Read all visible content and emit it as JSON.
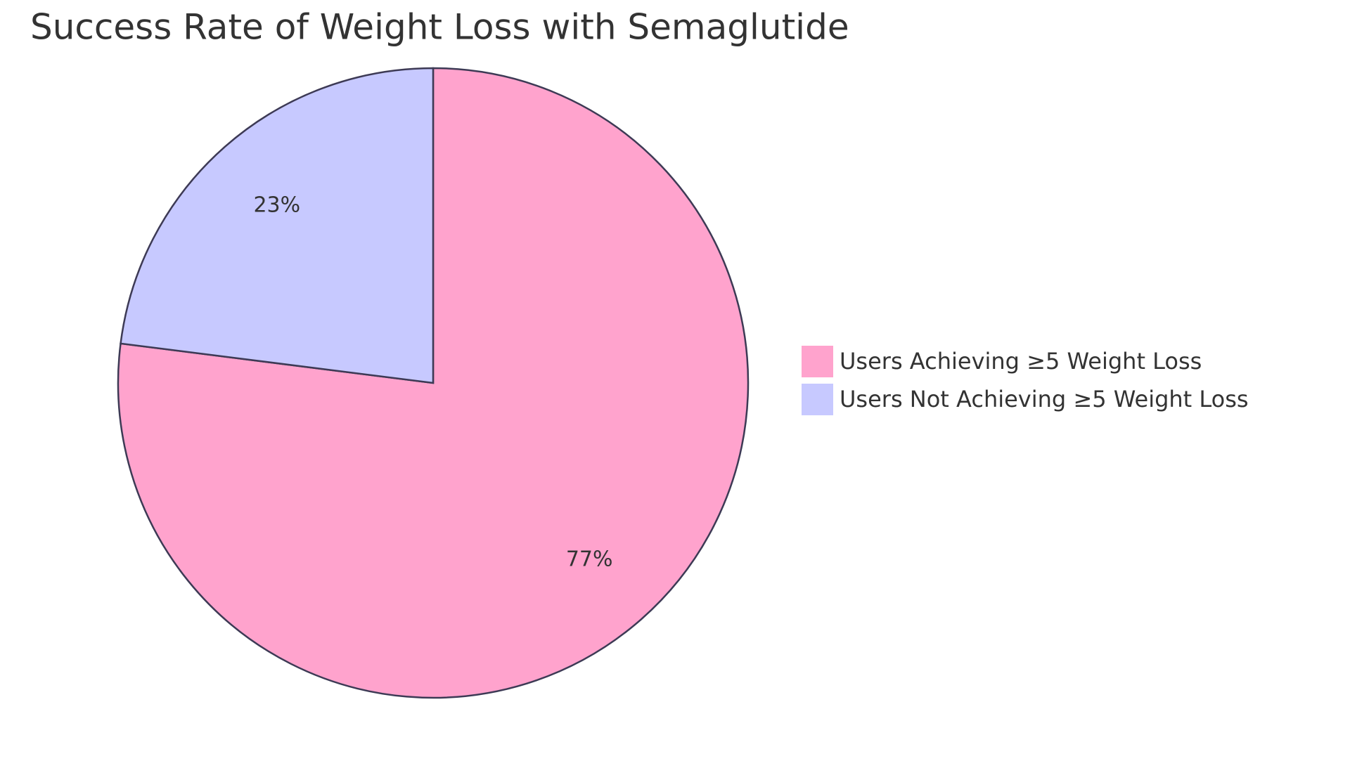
{
  "chart_data": {
    "type": "pie",
    "title": "Success Rate of Weight Loss with Semaglutide",
    "categories": [
      "Users Achieving ≥5 Weight Loss",
      "Users Not Achieving ≥5 Weight Loss"
    ],
    "values": [
      77,
      23
    ],
    "value_labels": [
      "77%",
      "23%"
    ],
    "colors": [
      "#ffa3cd",
      "#c7c9ff"
    ],
    "legend": "right"
  }
}
